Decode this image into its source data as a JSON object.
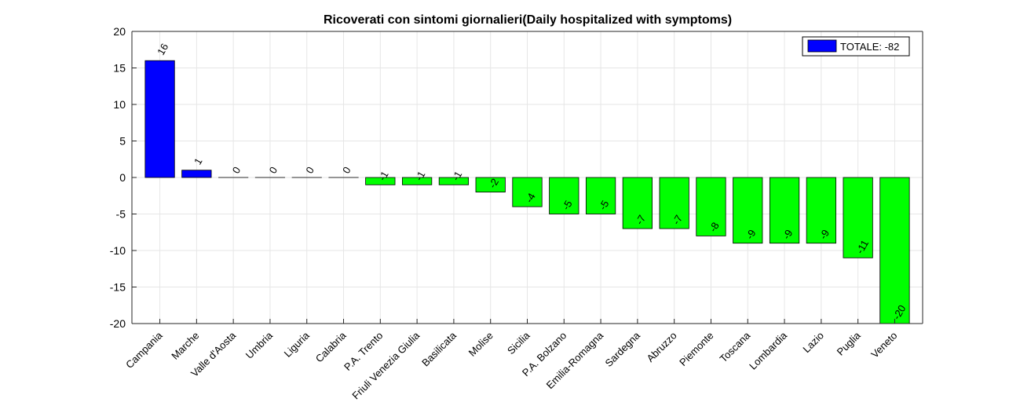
{
  "chart_data": {
    "type": "bar",
    "title": "Ricoverati con sintomi giornalieri(Daily hospitalized with symptoms)",
    "xlabel": "",
    "ylabel": "",
    "ylim": [
      -20,
      20
    ],
    "yticks": [
      20,
      15,
      10,
      5,
      0,
      -5,
      -10,
      -15,
      -20
    ],
    "grid": true,
    "categories": [
      "Campania",
      "Marche",
      "Valle d'Aosta",
      "Umbria",
      "Liguria",
      "Calabria",
      "P.A. Trento",
      "Friuli Venezia Giulia",
      "Basilicata",
      "Molise",
      "Sicilia",
      "P.A. Bolzano",
      "Emilia-Romagna",
      "Sardegna",
      "Abruzzo",
      "Piemonte",
      "Toscana",
      "Lombardia",
      "Lazio",
      "Puglia",
      "Veneto"
    ],
    "values": [
      16,
      1,
      0,
      0,
      0,
      0,
      -1,
      -1,
      -1,
      -2,
      -4,
      -5,
      -5,
      -7,
      -7,
      -8,
      -9,
      -9,
      -9,
      -11,
      -20
    ],
    "positive_color": "#0000ff",
    "negative_color": "#00ff00",
    "legend": {
      "label": "TOTALE: -82",
      "color": "#0000ff",
      "position": "top-right"
    }
  }
}
